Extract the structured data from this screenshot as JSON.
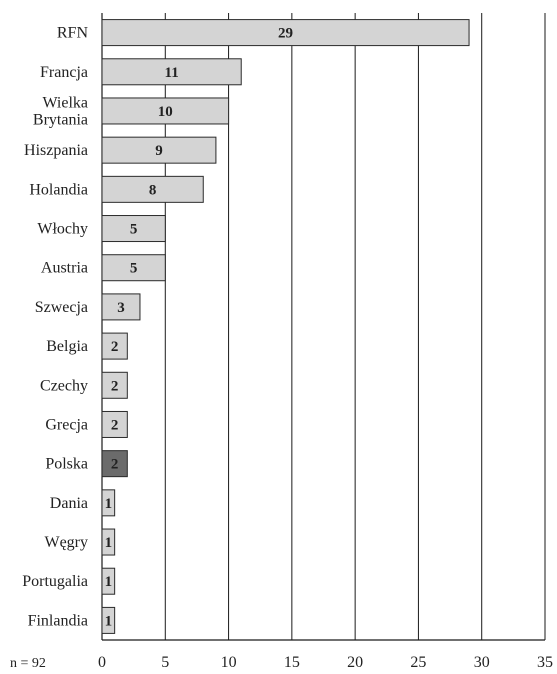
{
  "chart_data": {
    "type": "bar",
    "orientation": "horizontal",
    "categories": [
      [
        "RFN"
      ],
      [
        "Francja"
      ],
      [
        "Wielka",
        "Brytania"
      ],
      [
        "Hiszpania"
      ],
      [
        "Holandia"
      ],
      [
        "Włochy"
      ],
      [
        "Austria"
      ],
      [
        "Szwecja"
      ],
      [
        "Belgia"
      ],
      [
        "Czechy"
      ],
      [
        "Grecja"
      ],
      [
        "Polska"
      ],
      [
        "Dania"
      ],
      [
        "Węgry"
      ],
      [
        "Portugalia"
      ],
      [
        "Finlandia"
      ]
    ],
    "values": [
      29,
      11,
      10,
      9,
      8,
      5,
      5,
      3,
      2,
      2,
      2,
      2,
      1,
      1,
      1,
      1
    ],
    "highlight": "Polska",
    "xlim": [
      0,
      35
    ],
    "xticks": [
      0,
      5,
      10,
      15,
      20,
      25,
      30,
      35
    ],
    "grid": true,
    "note": "n = 92",
    "colors": {
      "bar": "#d4d4d4",
      "highlight": "#6b6b6b",
      "bar_stroke": "#2a2a2a",
      "grid": "#1a1a1a",
      "label": "#222222",
      "highlight_label": "#ffffff"
    }
  }
}
